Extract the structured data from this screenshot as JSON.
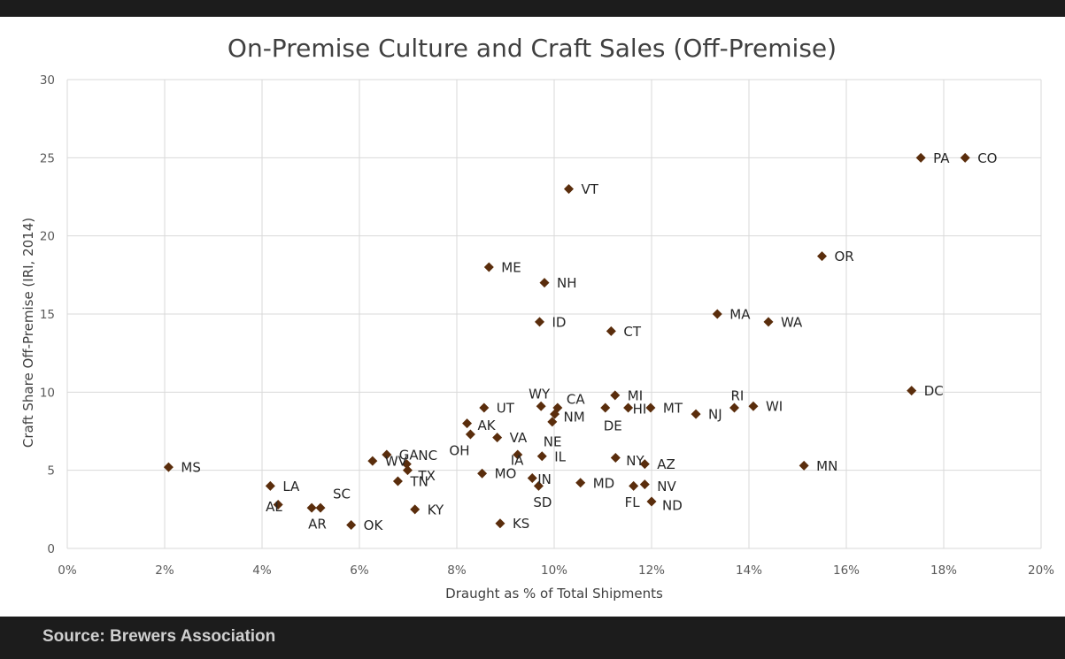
{
  "colors": {
    "marker": "#5a2d0c",
    "grid": "#d9d9d9",
    "frame": "#1c1c1c"
  },
  "source": "Source: Brewers Association",
  "chart_data": {
    "type": "scatter",
    "title": "On-Premise Culture and Craft Sales (Off-Premise)",
    "xlabel": "Draught as % of Total Shipments",
    "ylabel": "Craft Share Off-Premise (IRI, 2014)",
    "xlim": [
      0,
      20
    ],
    "ylim": [
      0,
      30
    ],
    "x_unit": "%",
    "grid": true,
    "marker": "diamond",
    "x_ticks": [
      "0%",
      "2%",
      "4%",
      "6%",
      "8%",
      "10%",
      "12%",
      "14%",
      "16%",
      "18%",
      "20%"
    ],
    "y_ticks": [
      "0",
      "5",
      "10",
      "15",
      "20",
      "25",
      "30"
    ],
    "points": [
      {
        "label": "MS",
        "x": 2.08,
        "y": 5.2
      },
      {
        "label": "LA",
        "x": 4.17,
        "y": 4.0
      },
      {
        "label": "AL",
        "x": 4.33,
        "y": 2.8
      },
      {
        "label": "AR",
        "x": 5.02,
        "y": 2.6
      },
      {
        "label": "SC",
        "x": 5.2,
        "y": 2.6
      },
      {
        "label": "OK",
        "x": 5.83,
        "y": 1.5
      },
      {
        "label": "WV",
        "x": 6.27,
        "y": 5.6
      },
      {
        "label": "GA",
        "x": 6.56,
        "y": 6.0
      },
      {
        "label": "TN",
        "x": 6.79,
        "y": 4.3
      },
      {
        "label": "NC",
        "x": 6.97,
        "y": 5.4
      },
      {
        "label": "TX",
        "x": 6.99,
        "y": 5.0
      },
      {
        "label": "KY",
        "x": 7.14,
        "y": 2.5
      },
      {
        "label": "AK",
        "x": 8.21,
        "y": 8.0
      },
      {
        "label": "OH",
        "x": 8.28,
        "y": 7.3
      },
      {
        "label": "MO",
        "x": 8.52,
        "y": 4.8
      },
      {
        "label": "UT",
        "x": 8.56,
        "y": 9.0
      },
      {
        "label": "ME",
        "x": 8.66,
        "y": 18.0
      },
      {
        "label": "VA",
        "x": 8.83,
        "y": 7.1
      },
      {
        "label": "KS",
        "x": 8.89,
        "y": 1.6
      },
      {
        "label": "IA",
        "x": 9.25,
        "y": 6.0
      },
      {
        "label": "IN",
        "x": 9.55,
        "y": 4.5
      },
      {
        "label": "SD",
        "x": 9.68,
        "y": 4.0
      },
      {
        "label": "ID",
        "x": 9.7,
        "y": 14.5
      },
      {
        "label": "WY",
        "x": 9.73,
        "y": 9.1
      },
      {
        "label": "IL",
        "x": 9.75,
        "y": 5.9
      },
      {
        "label": "NH",
        "x": 9.8,
        "y": 17.0
      },
      {
        "label": "NE",
        "x": 9.96,
        "y": 8.1
      },
      {
        "label": "NM",
        "x": 10.01,
        "y": 8.6
      },
      {
        "label": "CA",
        "x": 10.07,
        "y": 9.0
      },
      {
        "label": "VT",
        "x": 10.3,
        "y": 23.0
      },
      {
        "label": "MD",
        "x": 10.54,
        "y": 4.2
      },
      {
        "label": "DE",
        "x": 11.05,
        "y": 9.0
      },
      {
        "label": "CT",
        "x": 11.17,
        "y": 13.9
      },
      {
        "label": "MI",
        "x": 11.25,
        "y": 9.8
      },
      {
        "label": "NY",
        "x": 11.26,
        "y": 5.8
      },
      {
        "label": "HI",
        "x": 11.52,
        "y": 9.0
      },
      {
        "label": "FL",
        "x": 11.63,
        "y": 4.0
      },
      {
        "label": "AZ",
        "x": 11.86,
        "y": 5.4
      },
      {
        "label": "NV",
        "x": 11.86,
        "y": 4.1
      },
      {
        "label": "MT",
        "x": 11.98,
        "y": 9.0
      },
      {
        "label": "ND",
        "x": 12.0,
        "y": 3.0
      },
      {
        "label": "NJ",
        "x": 12.91,
        "y": 8.6
      },
      {
        "label": "MA",
        "x": 13.35,
        "y": 15.0
      },
      {
        "label": "RI",
        "x": 13.7,
        "y": 9.0
      },
      {
        "label": "WI",
        "x": 14.09,
        "y": 9.1
      },
      {
        "label": "WA",
        "x": 14.4,
        "y": 14.5
      },
      {
        "label": "MN",
        "x": 15.13,
        "y": 5.3
      },
      {
        "label": "OR",
        "x": 15.5,
        "y": 18.7
      },
      {
        "label": "DC",
        "x": 17.34,
        "y": 10.1
      },
      {
        "label": "PA",
        "x": 17.53,
        "y": 25.0
      },
      {
        "label": "CO",
        "x": 18.44,
        "y": 25.0
      }
    ]
  }
}
